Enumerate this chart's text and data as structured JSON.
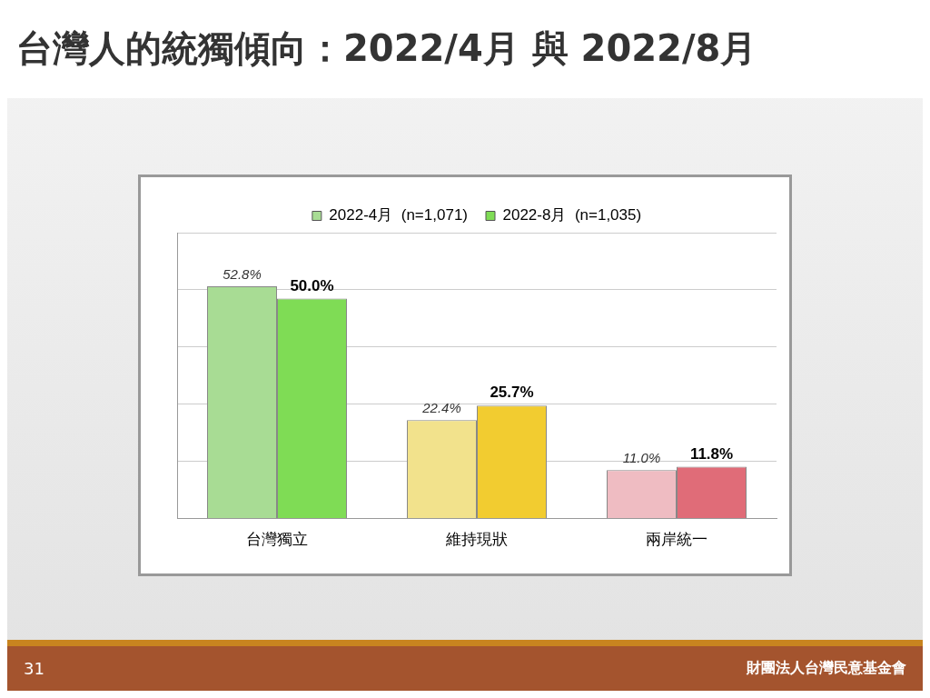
{
  "chart_data": {
    "type": "bar",
    "title": "台灣人的統獨傾向：2022/4月 與 2022/8月",
    "categories": [
      "台灣獨立",
      "維持現狀",
      "兩岸統一"
    ],
    "series": [
      {
        "name": "2022-4月  (n=1,071)",
        "color": "#a8dc94",
        "colors": [
          "#a8dc94",
          "#f2e28c",
          "#efbcc2"
        ],
        "values": [
          52.8,
          22.4,
          11.0
        ],
        "value_labels": [
          "52.8%",
          "22.4%",
          "11.0%"
        ]
      },
      {
        "name": "2022-8月  (n=1,035)",
        "color": "#7fdc55",
        "colors": [
          "#7fdc55",
          "#f2cc30",
          "#e06c78"
        ],
        "values": [
          50.0,
          25.7,
          11.8
        ],
        "value_labels": [
          "50.0%",
          "25.7%",
          "11.8%"
        ]
      }
    ],
    "ylim": [
      0,
      65
    ],
    "yticks": [
      {
        "value": 0,
        "label": null
      },
      {
        "value": 13,
        "label": null
      },
      {
        "value": 26,
        "label": null
      },
      {
        "value": 39,
        "label": null
      },
      {
        "value": 52,
        "label": null
      },
      {
        "value": 65,
        "label": null
      }
    ],
    "tick_labels": "x",
    "grid": "y",
    "legend": "top",
    "annotations": [
      "31",
      "財團法人台灣民意基金會"
    ]
  }
}
